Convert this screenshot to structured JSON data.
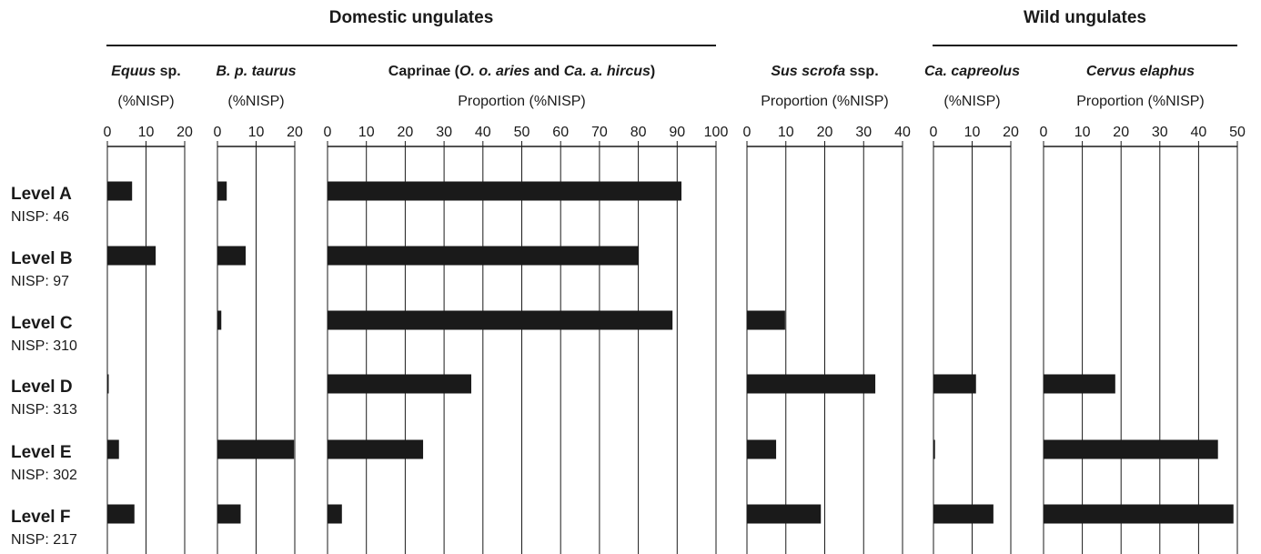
{
  "groups": [
    {
      "title": "Domestic ungulates"
    },
    {
      "title": "Wild ungulates"
    }
  ],
  "rows": [
    {
      "level": "Level A",
      "nisp": "NISP: 46"
    },
    {
      "level": "Level B",
      "nisp": "NISP: 97"
    },
    {
      "level": "Level C",
      "nisp": "NISP: 310"
    },
    {
      "level": "Level D",
      "nisp": "NISP: 313"
    },
    {
      "level": "Level E",
      "nisp": "NISP: 302"
    },
    {
      "level": "Level F",
      "nisp": "NISP: 217"
    }
  ],
  "chart_data": [
    {
      "type": "bar",
      "orientation": "horizontal",
      "color": "#1a1a1a",
      "grid": true,
      "title": [
        {
          "text": "Equus",
          "italic": true
        },
        {
          "text": " sp."
        }
      ],
      "subtitle": "(%NISP)",
      "xlim": [
        0,
        20
      ],
      "xticks": [
        0,
        10,
        20
      ],
      "values": [
        6.4,
        12.5,
        null,
        0.3,
        3,
        7
      ]
    },
    {
      "type": "bar",
      "orientation": "horizontal",
      "color": "#1a1a1a",
      "grid": true,
      "title": [
        {
          "text": "B. p. taurus",
          "italic": true
        }
      ],
      "subtitle": "(%NISP)",
      "xlim": [
        0,
        20
      ],
      "xticks": [
        0,
        10,
        20
      ],
      "values": [
        2.4,
        7.3,
        1,
        null,
        19.8,
        6
      ]
    },
    {
      "type": "bar",
      "orientation": "horizontal",
      "color": "#1a1a1a",
      "grid": true,
      "title": [
        {
          "text": "Caprinae ("
        },
        {
          "text": "O. o. aries",
          "italic": true
        },
        {
          "text": " and "
        },
        {
          "text": "Ca. a. hircus",
          "italic": true
        },
        {
          "text": ")"
        }
      ],
      "subtitle": "Proportion (%NISP)",
      "xlim": [
        0,
        100
      ],
      "xticks": [
        0,
        10,
        20,
        30,
        40,
        50,
        60,
        70,
        80,
        90,
        100
      ],
      "values": [
        91.1,
        80.1,
        88.8,
        37,
        24.6,
        3.7
      ]
    },
    {
      "type": "bar",
      "orientation": "horizontal",
      "color": "#1a1a1a",
      "grid": true,
      "title": [
        {
          "text": "Sus scrofa",
          "italic": true
        },
        {
          "text": " ssp."
        }
      ],
      "subtitle": "Proportion (%NISP)",
      "xlim": [
        0,
        40
      ],
      "xticks": [
        0,
        10,
        20,
        30,
        40
      ],
      "values": [
        null,
        null,
        9.8,
        33,
        7.5,
        19
      ]
    },
    {
      "type": "bar",
      "orientation": "horizontal",
      "color": "#1a1a1a",
      "grid": true,
      "title": [
        {
          "text": "Ca. capreolus",
          "italic": true
        }
      ],
      "subtitle": "(%NISP)",
      "xlim": [
        0,
        20
      ],
      "xticks": [
        0,
        10,
        20
      ],
      "values": [
        null,
        null,
        null,
        11,
        0.4,
        15.5
      ]
    },
    {
      "type": "bar",
      "orientation": "horizontal",
      "color": "#1a1a1a",
      "grid": true,
      "title": [
        {
          "text": "Cervus elaphus",
          "italic": true
        }
      ],
      "subtitle": "Proportion (%NISP)",
      "xlim": [
        0,
        50
      ],
      "xticks": [
        0,
        10,
        20,
        30,
        40,
        50
      ],
      "values": [
        null,
        null,
        null,
        18.5,
        45,
        49
      ]
    }
  ]
}
